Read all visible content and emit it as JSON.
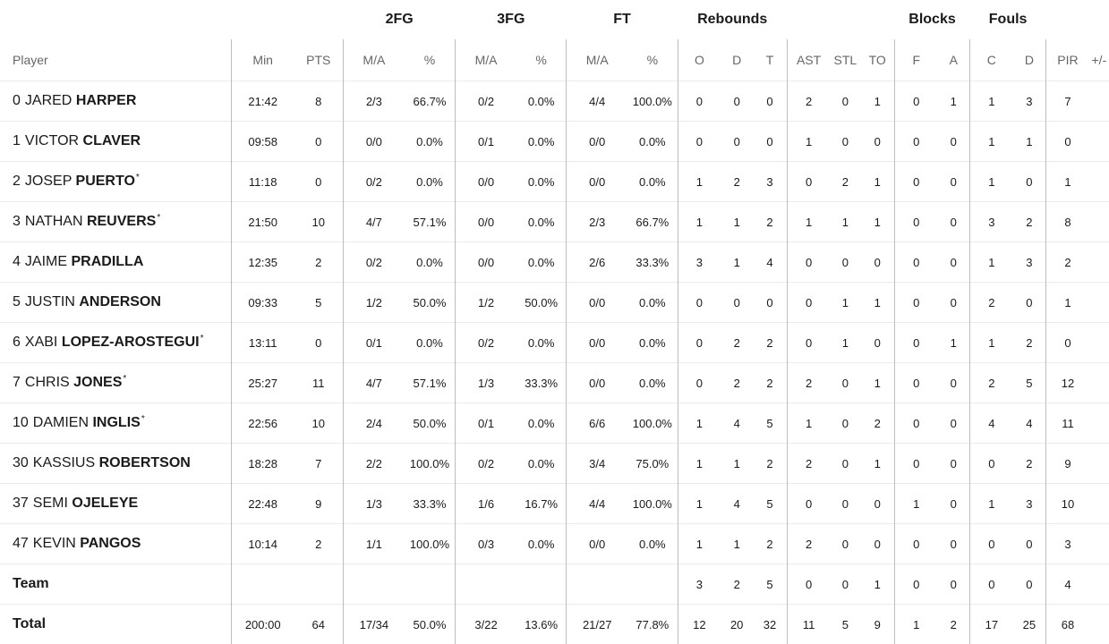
{
  "group_headers": {
    "fg2": "2FG",
    "fg3": "3FG",
    "ft": "FT",
    "rebounds": "Rebounds",
    "blocks": "Blocks",
    "fouls": "Fouls"
  },
  "columns": {
    "player": "Player",
    "min": "Min",
    "pts": "PTS",
    "fg2_ma": "M/A",
    "fg2_pct": "%",
    "fg3_ma": "M/A",
    "fg3_pct": "%",
    "ft_ma": "M/A",
    "ft_pct": "%",
    "reb_o": "O",
    "reb_d": "D",
    "reb_t": "T",
    "ast": "AST",
    "stl": "STL",
    "to": "TO",
    "blk_f": "F",
    "blk_a": "A",
    "foul_c": "C",
    "foul_d": "D",
    "pir": "PIR",
    "plusminus": "+/-"
  },
  "players": [
    {
      "num": "0",
      "first": "JARED",
      "last": "HARPER",
      "star": "",
      "min": "21:42",
      "pts": "8",
      "fg2_ma": "2/3",
      "fg2_pct": "66.7%",
      "fg3_ma": "0/2",
      "fg3_pct": "0.0%",
      "ft_ma": "4/4",
      "ft_pct": "100.0%",
      "reb_o": "0",
      "reb_d": "0",
      "reb_t": "0",
      "ast": "2",
      "stl": "0",
      "to": "1",
      "blk_f": "0",
      "blk_a": "1",
      "foul_c": "1",
      "foul_d": "3",
      "pir": "7"
    },
    {
      "num": "1",
      "first": "VICTOR",
      "last": "CLAVER",
      "star": "",
      "min": "09:58",
      "pts": "0",
      "fg2_ma": "0/0",
      "fg2_pct": "0.0%",
      "fg3_ma": "0/1",
      "fg3_pct": "0.0%",
      "ft_ma": "0/0",
      "ft_pct": "0.0%",
      "reb_o": "0",
      "reb_d": "0",
      "reb_t": "0",
      "ast": "1",
      "stl": "0",
      "to": "0",
      "blk_f": "0",
      "blk_a": "0",
      "foul_c": "1",
      "foul_d": "1",
      "pir": "0"
    },
    {
      "num": "2",
      "first": "JOSEP",
      "last": "PUERTO",
      "star": "*",
      "min": "11:18",
      "pts": "0",
      "fg2_ma": "0/2",
      "fg2_pct": "0.0%",
      "fg3_ma": "0/0",
      "fg3_pct": "0.0%",
      "ft_ma": "0/0",
      "ft_pct": "0.0%",
      "reb_o": "1",
      "reb_d": "2",
      "reb_t": "3",
      "ast": "0",
      "stl": "2",
      "to": "1",
      "blk_f": "0",
      "blk_a": "0",
      "foul_c": "1",
      "foul_d": "0",
      "pir": "1"
    },
    {
      "num": "3",
      "first": "NATHAN",
      "last": "REUVERS",
      "star": "*",
      "min": "21:50",
      "pts": "10",
      "fg2_ma": "4/7",
      "fg2_pct": "57.1%",
      "fg3_ma": "0/0",
      "fg3_pct": "0.0%",
      "ft_ma": "2/3",
      "ft_pct": "66.7%",
      "reb_o": "1",
      "reb_d": "1",
      "reb_t": "2",
      "ast": "1",
      "stl": "1",
      "to": "1",
      "blk_f": "0",
      "blk_a": "0",
      "foul_c": "3",
      "foul_d": "2",
      "pir": "8"
    },
    {
      "num": "4",
      "first": "JAIME",
      "last": "PRADILLA",
      "star": "",
      "min": "12:35",
      "pts": "2",
      "fg2_ma": "0/2",
      "fg2_pct": "0.0%",
      "fg3_ma": "0/0",
      "fg3_pct": "0.0%",
      "ft_ma": "2/6",
      "ft_pct": "33.3%",
      "reb_o": "3",
      "reb_d": "1",
      "reb_t": "4",
      "ast": "0",
      "stl": "0",
      "to": "0",
      "blk_f": "0",
      "blk_a": "0",
      "foul_c": "1",
      "foul_d": "3",
      "pir": "2"
    },
    {
      "num": "5",
      "first": "JUSTIN",
      "last": "ANDERSON",
      "star": "",
      "min": "09:33",
      "pts": "5",
      "fg2_ma": "1/2",
      "fg2_pct": "50.0%",
      "fg3_ma": "1/2",
      "fg3_pct": "50.0%",
      "ft_ma": "0/0",
      "ft_pct": "0.0%",
      "reb_o": "0",
      "reb_d": "0",
      "reb_t": "0",
      "ast": "0",
      "stl": "1",
      "to": "1",
      "blk_f": "0",
      "blk_a": "0",
      "foul_c": "2",
      "foul_d": "0",
      "pir": "1"
    },
    {
      "num": "6",
      "first": "XABI",
      "last": "LOPEZ-AROSTEGUI",
      "star": "*",
      "min": "13:11",
      "pts": "0",
      "fg2_ma": "0/1",
      "fg2_pct": "0.0%",
      "fg3_ma": "0/2",
      "fg3_pct": "0.0%",
      "ft_ma": "0/0",
      "ft_pct": "0.0%",
      "reb_o": "0",
      "reb_d": "2",
      "reb_t": "2",
      "ast": "0",
      "stl": "1",
      "to": "0",
      "blk_f": "0",
      "blk_a": "1",
      "foul_c": "1",
      "foul_d": "2",
      "pir": "0"
    },
    {
      "num": "7",
      "first": "CHRIS",
      "last": "JONES",
      "star": "*",
      "min": "25:27",
      "pts": "11",
      "fg2_ma": "4/7",
      "fg2_pct": "57.1%",
      "fg3_ma": "1/3",
      "fg3_pct": "33.3%",
      "ft_ma": "0/0",
      "ft_pct": "0.0%",
      "reb_o": "0",
      "reb_d": "2",
      "reb_t": "2",
      "ast": "2",
      "stl": "0",
      "to": "1",
      "blk_f": "0",
      "blk_a": "0",
      "foul_c": "2",
      "foul_d": "5",
      "pir": "12"
    },
    {
      "num": "10",
      "first": "DAMIEN",
      "last": "INGLIS",
      "star": "*",
      "min": "22:56",
      "pts": "10",
      "fg2_ma": "2/4",
      "fg2_pct": "50.0%",
      "fg3_ma": "0/1",
      "fg3_pct": "0.0%",
      "ft_ma": "6/6",
      "ft_pct": "100.0%",
      "reb_o": "1",
      "reb_d": "4",
      "reb_t": "5",
      "ast": "1",
      "stl": "0",
      "to": "2",
      "blk_f": "0",
      "blk_a": "0",
      "foul_c": "4",
      "foul_d": "4",
      "pir": "11"
    },
    {
      "num": "30",
      "first": "KASSIUS",
      "last": "ROBERTSON",
      "star": "",
      "min": "18:28",
      "pts": "7",
      "fg2_ma": "2/2",
      "fg2_pct": "100.0%",
      "fg3_ma": "0/2",
      "fg3_pct": "0.0%",
      "ft_ma": "3/4",
      "ft_pct": "75.0%",
      "reb_o": "1",
      "reb_d": "1",
      "reb_t": "2",
      "ast": "2",
      "stl": "0",
      "to": "1",
      "blk_f": "0",
      "blk_a": "0",
      "foul_c": "0",
      "foul_d": "2",
      "pir": "9"
    },
    {
      "num": "37",
      "first": "SEMI",
      "last": "OJELEYE",
      "star": "",
      "min": "22:48",
      "pts": "9",
      "fg2_ma": "1/3",
      "fg2_pct": "33.3%",
      "fg3_ma": "1/6",
      "fg3_pct": "16.7%",
      "ft_ma": "4/4",
      "ft_pct": "100.0%",
      "reb_o": "1",
      "reb_d": "4",
      "reb_t": "5",
      "ast": "0",
      "stl": "0",
      "to": "0",
      "blk_f": "1",
      "blk_a": "0",
      "foul_c": "1",
      "foul_d": "3",
      "pir": "10"
    },
    {
      "num": "47",
      "first": "KEVIN",
      "last": "PANGOS",
      "star": "",
      "min": "10:14",
      "pts": "2",
      "fg2_ma": "1/1",
      "fg2_pct": "100.0%",
      "fg3_ma": "0/3",
      "fg3_pct": "0.0%",
      "ft_ma": "0/0",
      "ft_pct": "0.0%",
      "reb_o": "1",
      "reb_d": "1",
      "reb_t": "2",
      "ast": "2",
      "stl": "0",
      "to": "0",
      "blk_f": "0",
      "blk_a": "0",
      "foul_c": "0",
      "foul_d": "0",
      "pir": "3"
    }
  ],
  "team": {
    "label": "Team",
    "reb_o": "3",
    "reb_d": "2",
    "reb_t": "5",
    "ast": "0",
    "stl": "0",
    "to": "1",
    "blk_f": "0",
    "blk_a": "0",
    "foul_c": "0",
    "foul_d": "0",
    "pir": "4"
  },
  "total": {
    "label": "Total",
    "min": "200:00",
    "pts": "64",
    "fg2_ma": "17/34",
    "fg2_pct": "50.0%",
    "fg3_ma": "3/22",
    "fg3_pct": "13.6%",
    "ft_ma": "21/27",
    "ft_pct": "77.8%",
    "reb_o": "12",
    "reb_d": "20",
    "reb_t": "32",
    "ast": "11",
    "stl": "5",
    "to": "9",
    "blk_f": "1",
    "blk_a": "2",
    "foul_c": "17",
    "foul_d": "25",
    "pir": "68"
  }
}
